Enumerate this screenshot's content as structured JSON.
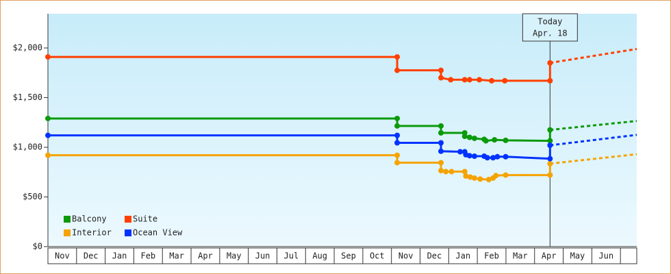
{
  "chart_data": {
    "type": "line",
    "categories": [
      "Nov",
      "Dec",
      "Jan",
      "Feb",
      "Mar",
      "Apr",
      "May",
      "Jun",
      "Jul",
      "Aug",
      "Sep",
      "Oct",
      "Nov",
      "Dec",
      "Jan",
      "Feb",
      "Mar",
      "Apr",
      "May",
      "Jun",
      null
    ],
    "xlim": [
      0,
      20.57
    ],
    "ylim": [
      0,
      2345
    ],
    "yticks": [
      {
        "value": 0,
        "label": "$0"
      },
      {
        "value": 500,
        "label": "$500"
      },
      {
        "value": 1000,
        "label": "$1,000"
      },
      {
        "value": 1500,
        "label": "$1,500"
      },
      {
        "value": 2000,
        "label": "$2,000"
      }
    ],
    "legend": "lower left",
    "annotation": {
      "x": 17.54,
      "lines": [
        "Today",
        "Apr. 18"
      ]
    },
    "series": [
      {
        "name": "Balcony",
        "color": "#0a9a0a",
        "x": [
          0,
          12.2,
          12.2,
          13.73,
          13.73,
          14.56,
          14.56,
          14.73,
          14.9,
          15.24,
          15.3,
          15.6,
          15.99,
          17.54,
          17.54
        ],
        "values": [
          1290,
          1290,
          1215,
          1215,
          1145,
          1145,
          1110,
          1100,
          1090,
          1080,
          1065,
          1075,
          1070,
          1065,
          1175
        ],
        "projection": {
          "x": [
            17.54,
            20.57
          ],
          "values": [
            1175,
            1265
          ]
        }
      },
      {
        "name": "Suite",
        "color": "#ff4000",
        "x": [
          0,
          12.2,
          12.2,
          13.73,
          13.73,
          14.07,
          14.56,
          14.73,
          15.07,
          15.5,
          15.96,
          17.54,
          17.54
        ],
        "values": [
          1910,
          1910,
          1775,
          1775,
          1700,
          1680,
          1680,
          1680,
          1680,
          1670,
          1670,
          1670,
          1850
        ],
        "projection": {
          "x": [
            17.54,
            20.57
          ],
          "values": [
            1850,
            1990
          ]
        }
      },
      {
        "name": "Interior",
        "color": "#f5a300",
        "x": [
          0,
          12.2,
          12.2,
          13.73,
          13.73,
          13.9,
          14.1,
          14.56,
          14.6,
          14.75,
          14.9,
          15.1,
          15.4,
          15.55,
          15.65,
          15.99,
          17.54,
          17.54
        ],
        "values": [
          920,
          920,
          845,
          845,
          765,
          755,
          755,
          755,
          710,
          700,
          690,
          680,
          675,
          690,
          715,
          720,
          720,
          835
        ],
        "projection": {
          "x": [
            17.54,
            20.57
          ],
          "values": [
            835,
            930
          ]
        }
      },
      {
        "name": "Ocean View",
        "color": "#0033ff",
        "x": [
          0,
          12.2,
          12.2,
          13.73,
          13.73,
          14.4,
          14.56,
          14.6,
          14.73,
          14.9,
          15.24,
          15.35,
          15.55,
          15.7,
          15.99,
          17.54,
          17.54
        ],
        "values": [
          1120,
          1120,
          1045,
          1045,
          960,
          955,
          955,
          925,
          915,
          910,
          910,
          895,
          895,
          905,
          905,
          885,
          1020
        ],
        "projection": {
          "x": [
            17.54,
            20.57
          ],
          "values": [
            1020,
            1125
          ]
        }
      }
    ]
  }
}
